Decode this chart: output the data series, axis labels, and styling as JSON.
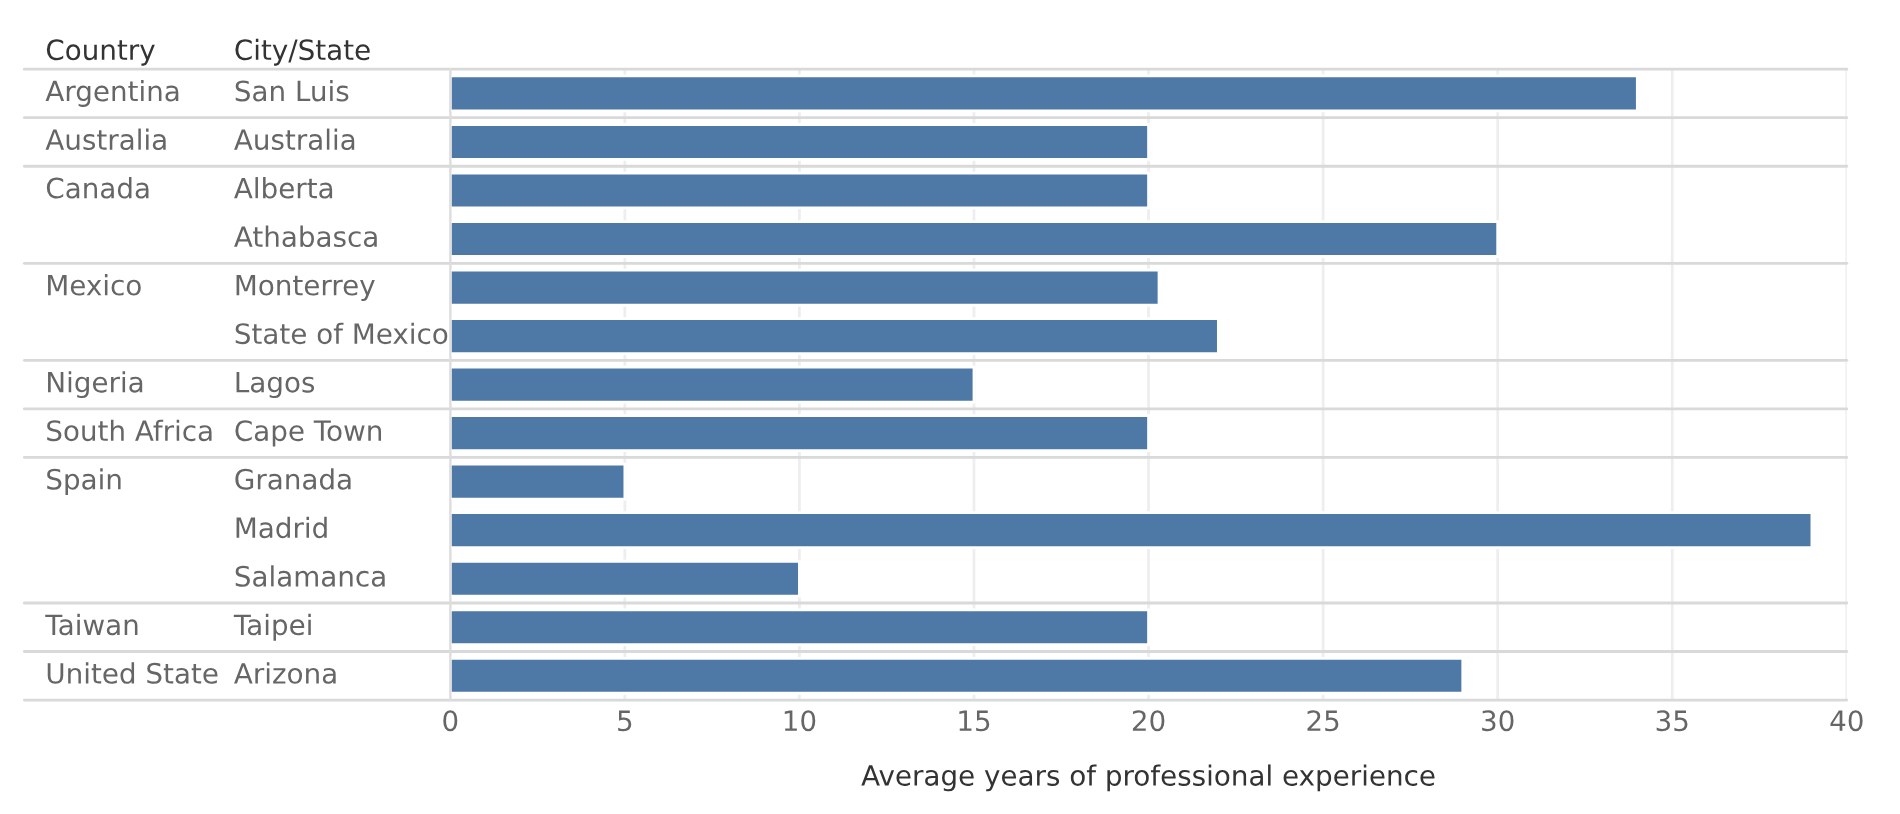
{
  "chart_data": {
    "type": "bar",
    "orientation": "horizontal",
    "xlabel": "Average years of professional experience",
    "ylabel": "City/State",
    "categories": [
      "San Luis",
      "Australia",
      "Alberta",
      "Athabasca",
      "Monterrey",
      "State of Mexico",
      "Lagos",
      "Cape Town",
      "Granada",
      "Madrid",
      "Salamanca",
      "Taipei",
      "Arizona"
    ],
    "values": [
      34,
      20,
      20,
      30,
      20.3,
      22,
      15,
      20,
      5,
      39,
      10,
      20,
      29
    ],
    "color": "#4e79a7",
    "xlim": [
      0,
      40
    ],
    "xticks": [
      0,
      5,
      10,
      15,
      20,
      25,
      30,
      35,
      40
    ],
    "grid": "x",
    "y2_categories": [
      "Argentina",
      "Australia",
      "Canada",
      null,
      "Mexico",
      null,
      "Nigeria",
      "South Africa",
      "Spain",
      null,
      null,
      "Taiwan",
      "United State"
    ],
    "annotations": [
      "Country"
    ]
  }
}
